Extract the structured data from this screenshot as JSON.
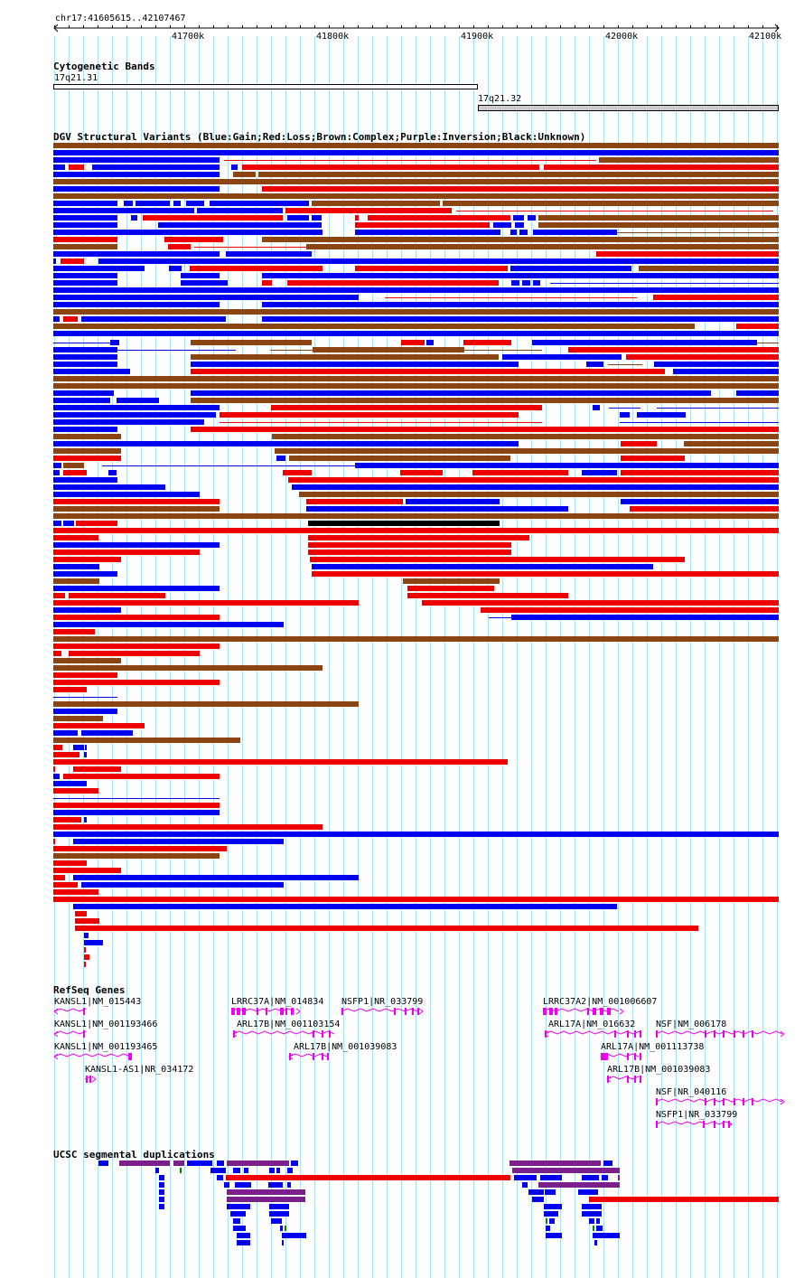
{
  "ruler": {
    "position_label": "chr17:41605615..42107467",
    "ticks": [
      "41700k",
      "41800k",
      "41900k",
      "42000k",
      "42100k"
    ]
  },
  "cytoband": {
    "title": "Cytogenetic Bands",
    "band1": "17q21.31",
    "band2": "17q21.32"
  },
  "dgv": {
    "title": "DGV Structural Variants (Blue:Gain;Red:Loss;Brown:Complex;Purple:Inversion;Black:Unknown)",
    "colors": {
      "gain": "#0000ee",
      "loss": "#ee0000",
      "complex": "#8b4513",
      "inversion": "#7b1f8b",
      "unknown": "#000000"
    }
  },
  "refseq": {
    "title": "RefSeq Genes",
    "color": "#ee00ee",
    "genes": [
      "KANSL1|NM_015443",
      "KANSL1|NM_001193466",
      "KANSL1|NM_001193465",
      "KANSL1-AS1|NR_034172",
      "LRRC37A|NM_014834",
      "ARL17B|NM_001103154",
      "NSFP1|NR_033799",
      "ARL17B|NM_001039083",
      "LRRC37A2|NM_001006607",
      "ARL17A|NM_016632",
      "NSF|NM_006178",
      "ARL17A|NM_001113738",
      "ARL17B|NM_001039083",
      "NSF|NR_040116",
      "NSFP1|NR_033799"
    ]
  },
  "segdup": {
    "title": "UCSC segmental duplications"
  }
}
